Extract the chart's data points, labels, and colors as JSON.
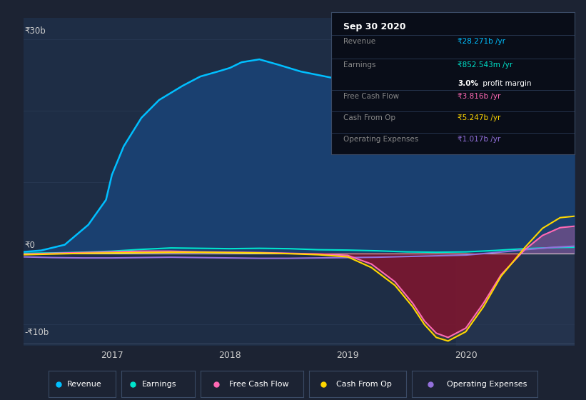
{
  "bg_color": "#1c2333",
  "plot_bg_color": "#1e2d45",
  "grid_color": "#2a3a55",
  "zero_line_color": "#cccccc",
  "ytick_labels": {
    "30": "₹30b",
    "0": "₹0",
    "-10": "-₹10b"
  },
  "ylim": [
    -13,
    33
  ],
  "xlim": [
    2016.25,
    2020.92
  ],
  "xticks": [
    2017,
    2018,
    2019,
    2020
  ],
  "revenue_color": "#00bfff",
  "revenue_fill": "#1a4070",
  "earnings_color": "#00e5cc",
  "fcf_color": "#ff69b4",
  "cashop_color": "#ffd700",
  "opex_color": "#9370db",
  "revenue_x": [
    2016.25,
    2016.4,
    2016.6,
    2016.8,
    2016.95,
    2017.0,
    2017.1,
    2017.25,
    2017.4,
    2017.6,
    2017.75,
    2017.9,
    2018.0,
    2018.1,
    2018.25,
    2018.4,
    2018.6,
    2018.75,
    2018.9,
    2019.0,
    2019.15,
    2019.3,
    2019.5,
    2019.6,
    2019.75,
    2019.9,
    2020.0,
    2020.1,
    2020.25,
    2020.4,
    2020.6,
    2020.75,
    2020.9,
    2020.92
  ],
  "revenue_y": [
    0.2,
    0.4,
    1.2,
    4.0,
    7.5,
    11.0,
    15.0,
    19.0,
    21.5,
    23.5,
    24.8,
    25.5,
    26.0,
    26.8,
    27.2,
    26.5,
    25.5,
    25.0,
    24.5,
    24.5,
    24.0,
    23.5,
    23.0,
    23.5,
    24.0,
    24.2,
    24.3,
    25.0,
    26.5,
    28.0,
    29.5,
    30.2,
    28.5,
    28.3
  ],
  "earnings_x": [
    2016.25,
    2016.5,
    2016.75,
    2017.0,
    2017.25,
    2017.5,
    2017.75,
    2018.0,
    2018.25,
    2018.5,
    2018.75,
    2019.0,
    2019.25,
    2019.5,
    2019.75,
    2020.0,
    2020.25,
    2020.5,
    2020.75,
    2020.92
  ],
  "earnings_y": [
    0.0,
    0.05,
    0.15,
    0.3,
    0.55,
    0.75,
    0.7,
    0.65,
    0.7,
    0.65,
    0.5,
    0.45,
    0.35,
    0.2,
    0.15,
    0.2,
    0.4,
    0.65,
    0.8,
    0.85
  ],
  "fcf_x": [
    2016.25,
    2016.5,
    2016.75,
    2017.0,
    2017.25,
    2017.5,
    2017.75,
    2018.0,
    2018.25,
    2018.5,
    2018.75,
    2019.0,
    2019.2,
    2019.4,
    2019.55,
    2019.65,
    2019.75,
    2019.85,
    2020.0,
    2020.15,
    2020.3,
    2020.5,
    2020.65,
    2020.8,
    2020.92
  ],
  "fcf_y": [
    -0.1,
    0.0,
    0.1,
    0.2,
    0.3,
    0.3,
    0.2,
    0.15,
    0.1,
    0.0,
    -0.1,
    -0.3,
    -1.5,
    -4.0,
    -7.0,
    -9.5,
    -11.2,
    -11.8,
    -10.5,
    -7.0,
    -3.0,
    0.5,
    2.5,
    3.6,
    3.8
  ],
  "cashop_x": [
    2016.25,
    2016.5,
    2016.75,
    2017.0,
    2017.25,
    2017.5,
    2017.75,
    2018.0,
    2018.25,
    2018.5,
    2018.75,
    2019.0,
    2019.2,
    2019.4,
    2019.55,
    2019.65,
    2019.75,
    2019.85,
    2020.0,
    2020.15,
    2020.3,
    2020.5,
    2020.65,
    2020.8,
    2020.92
  ],
  "cashop_y": [
    -0.2,
    -0.1,
    0.0,
    0.05,
    0.1,
    0.15,
    0.15,
    0.1,
    0.05,
    -0.05,
    -0.2,
    -0.5,
    -2.0,
    -4.5,
    -7.5,
    -10.0,
    -11.8,
    -12.3,
    -11.0,
    -7.5,
    -3.2,
    0.8,
    3.5,
    5.0,
    5.2
  ],
  "opex_x": [
    2016.25,
    2016.5,
    2016.75,
    2017.0,
    2017.25,
    2017.5,
    2017.75,
    2018.0,
    2018.25,
    2018.5,
    2018.75,
    2019.0,
    2019.25,
    2019.5,
    2019.75,
    2020.0,
    2020.25,
    2020.5,
    2020.75,
    2020.92
  ],
  "opex_y": [
    -0.5,
    -0.6,
    -0.65,
    -0.65,
    -0.6,
    -0.55,
    -0.6,
    -0.65,
    -0.7,
    -0.7,
    -0.65,
    -0.6,
    -0.55,
    -0.45,
    -0.35,
    -0.25,
    0.1,
    0.5,
    0.85,
    1.0
  ],
  "highlight_x_start": 2019.92,
  "highlight_x_end": 2020.92,
  "legend_items": [
    {
      "label": "Revenue",
      "color": "#00bfff"
    },
    {
      "label": "Earnings",
      "color": "#00e5cc"
    },
    {
      "label": "Free Cash Flow",
      "color": "#ff69b4"
    },
    {
      "label": "Cash From Op",
      "color": "#ffd700"
    },
    {
      "label": "Operating Expenses",
      "color": "#9370db"
    }
  ],
  "tooltip_title": "Sep 30 2020",
  "tooltip_rows": [
    {
      "label": "Revenue",
      "value": "₹28.271b /yr",
      "value_color": "#00bfff",
      "extra": null
    },
    {
      "label": "Earnings",
      "value": "₹852.543m /yr",
      "value_color": "#00e5cc",
      "extra": "3.0% profit margin"
    },
    {
      "label": "Free Cash Flow",
      "value": "₹3.816b /yr",
      "value_color": "#ff69b4",
      "extra": null
    },
    {
      "label": "Cash From Op",
      "value": "₹5.247b /yr",
      "value_color": "#ffd700",
      "extra": null
    },
    {
      "label": "Operating Expenses",
      "value": "₹1.017b /yr",
      "value_color": "#9370db",
      "extra": null
    }
  ]
}
